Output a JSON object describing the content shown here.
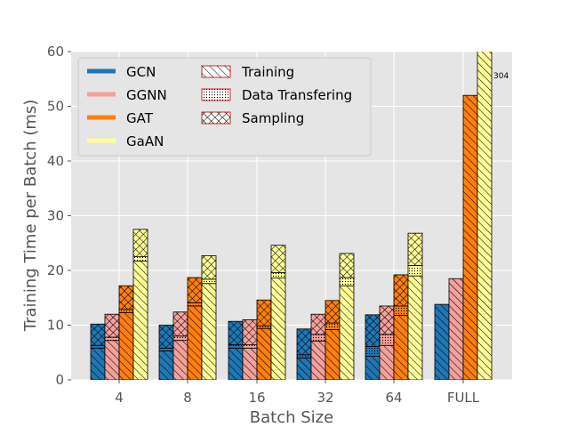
{
  "chart_data": {
    "type": "bar",
    "stacked": true,
    "xlabel": "Batch Size",
    "ylabel": "Training Time per Batch (ms)",
    "categories": [
      "4",
      "8",
      "16",
      "32",
      "64",
      "FULL"
    ],
    "ylim": [
      0,
      60
    ],
    "yticks": [
      "0",
      "10",
      "20",
      "30",
      "40",
      "50",
      "60"
    ],
    "grid": true,
    "legend_position": "top-left",
    "models": [
      {
        "name": "GCN",
        "color": "#1f77b4"
      },
      {
        "name": "GGNN",
        "color": "#f4a09c"
      },
      {
        "name": "GAT",
        "color": "#ff7f0e"
      },
      {
        "name": "GaAN",
        "color": "#ffff99"
      }
    ],
    "phases": [
      {
        "name": "Training",
        "hatch": "diagonal"
      },
      {
        "name": "Data Transfering",
        "hatch": "dots"
      },
      {
        "name": "Sampling",
        "hatch": "crosshatch"
      }
    ],
    "values": {
      "GCN": [
        [
          5.8,
          0.5,
          3.9
        ],
        [
          5.3,
          0.5,
          4.2
        ],
        [
          5.8,
          0.6,
          4.3
        ],
        [
          4.0,
          0.6,
          4.7
        ],
        [
          4.3,
          1.8,
          5.8
        ],
        [
          13.8,
          0,
          0
        ]
      ],
      "GGNN": [
        [
          7.2,
          0.6,
          4.2
        ],
        [
          7.2,
          0.8,
          4.4
        ],
        [
          5.8,
          0.6,
          4.6
        ],
        [
          7.1,
          1.2,
          3.7
        ],
        [
          6.3,
          2.0,
          5.2
        ],
        [
          18.5,
          0,
          0
        ]
      ],
      "GAT": [
        [
          12.3,
          0.6,
          4.3
        ],
        [
          13.5,
          0.6,
          4.6
        ],
        [
          9.4,
          0.5,
          4.7
        ],
        [
          9.2,
          1.2,
          4.1
        ],
        [
          11.8,
          1.7,
          5.7
        ],
        [
          52.0,
          0,
          0
        ]
      ],
      "GaAN": [
        [
          21.7,
          0.8,
          5.0
        ],
        [
          17.6,
          0.8,
          4.3
        ],
        [
          18.6,
          1.0,
          5.0
        ],
        [
          17.2,
          1.5,
          4.4
        ],
        [
          19.0,
          1.9,
          5.9
        ],
        [
          304,
          0,
          0
        ]
      ]
    },
    "annotations": [
      {
        "text": "304",
        "category": "FULL",
        "series": "GaAN"
      }
    ]
  }
}
